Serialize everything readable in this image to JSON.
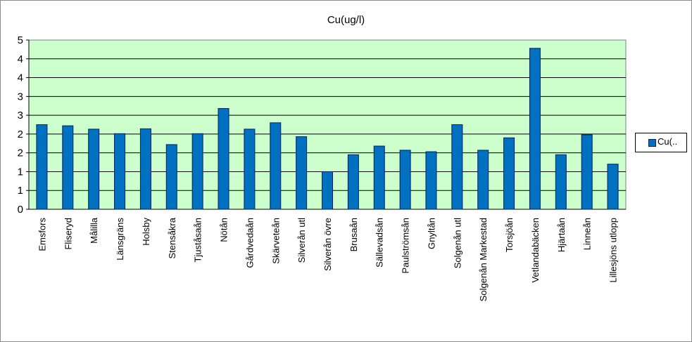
{
  "chart_data": {
    "type": "bar",
    "title": "Cu(ug/l)",
    "categories": [
      "Emsfors",
      "Fliseryd",
      "Målilla",
      "Länsgräns",
      "Holsby",
      "Stensåkra",
      "Tjuståsaån",
      "Nötån",
      "Gårdvedaån",
      "Skärveteån",
      "Silverån utl",
      "Silverån övre",
      "Brusaån",
      "Sällevadsån",
      "Paulströmsån",
      "Gnyltån",
      "Solgenån utl",
      "Solgenån Markestad",
      "Torsjöån",
      "Vetlandabäcken",
      "Hjärtaån",
      "Linneån",
      "Lillesjöns utlopp"
    ],
    "series": [
      {
        "name": "Cu(..",
        "values": [
          2.25,
          2.22,
          2.13,
          2.01,
          2.14,
          1.72,
          2.01,
          2.68,
          2.13,
          2.3,
          1.93,
          1.0,
          1.45,
          1.68,
          1.57,
          1.53,
          2.25,
          1.57,
          1.9,
          4.28,
          1.45,
          1.98,
          1.2
        ]
      }
    ],
    "yticks": [
      "0",
      "1",
      "1",
      "2",
      "2",
      "3",
      "3",
      "4",
      "4",
      "5"
    ],
    "ylim": [
      0,
      4.5
    ],
    "grid": true,
    "legend": "right",
    "colors": {
      "bar": "#0070c0",
      "bar_edge": "#002060",
      "plot_bg": "#ccffcc"
    }
  }
}
